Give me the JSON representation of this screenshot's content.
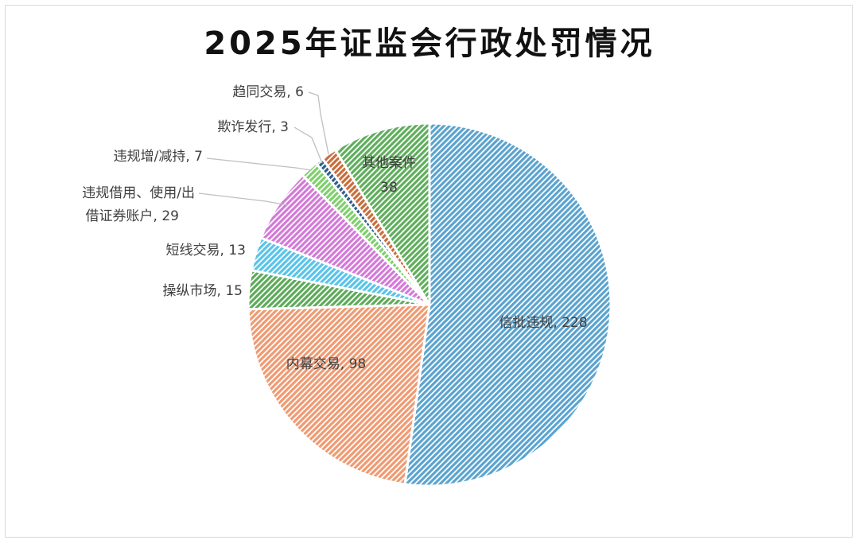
{
  "chart_data": {
    "type": "pie",
    "title": "2025年证监会行政处罚情况",
    "start_angle_deg": 0,
    "direction": "clockwise",
    "slices": [
      {
        "name": "信批违规",
        "value": 228,
        "color": "#5ba3cf",
        "label_text": "信批违规, 228"
      },
      {
        "name": "内幕交易",
        "value": 98,
        "color": "#ef9a72",
        "label_text": "内幕交易, 98"
      },
      {
        "name": "操纵市场",
        "value": 15,
        "color": "#5daa5a",
        "label_text": "操纵市场, 15"
      },
      {
        "name": "短线交易",
        "value": 13,
        "color": "#57c4ea",
        "label_text": "短线交易, 13"
      },
      {
        "name": "违规借用、使用/出借证券账户",
        "value": 29,
        "color": "#d379d8",
        "label_line1": "违规借用、使用/出",
        "label_line2": "借证券账户, 29"
      },
      {
        "name": "违规增/减持",
        "value": 7,
        "color": "#7dcf6b",
        "label_text": "违规增/减持, 7"
      },
      {
        "name": "欺诈发行",
        "value": 3,
        "color": "#2f5f8c",
        "label_text": "欺诈发行, 3"
      },
      {
        "name": "趋同交易",
        "value": 6,
        "color": "#c86d3d",
        "label_text": "趋同交易, 6"
      },
      {
        "name": "其他案件",
        "value": 38,
        "color": "#5fae5c",
        "label_line1": "其他案件",
        "label_line2": "38"
      }
    ]
  }
}
